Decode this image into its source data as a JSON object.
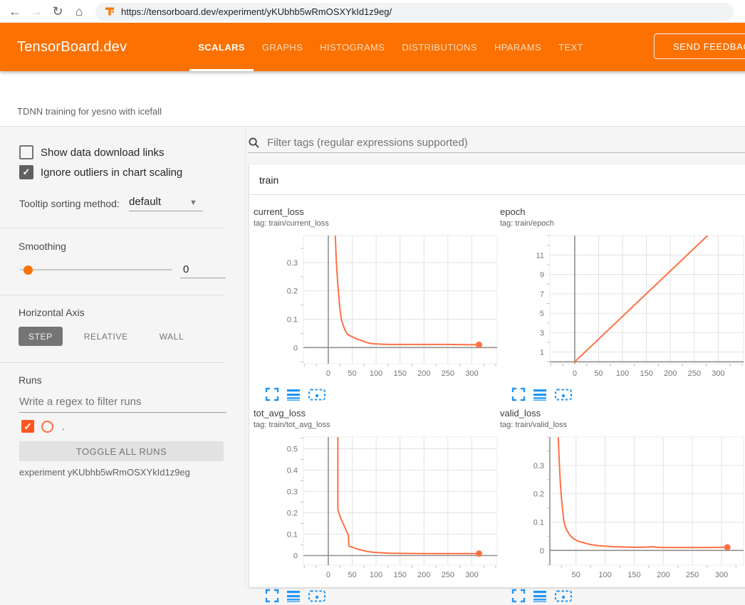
{
  "browser": {
    "url": "https://tensorboard.dev/experiment/yKUbhb5wRmOSXYkId1z9eg/",
    "back_glyph": "←",
    "forward_glyph": "→",
    "reload_glyph": "↻",
    "home_glyph": "⌂"
  },
  "header": {
    "logo": "TensorBoard.dev",
    "tabs": [
      {
        "label": "SCALARS",
        "active": true
      },
      {
        "label": "GRAPHS",
        "active": false
      },
      {
        "label": "HISTOGRAMS",
        "active": false
      },
      {
        "label": "DISTRIBUTIONS",
        "active": false
      },
      {
        "label": "HPARAMS",
        "active": false
      },
      {
        "label": "TEXT",
        "active": false
      }
    ],
    "feedback_label": "SEND FEEDBACK"
  },
  "subheader": {
    "experiment_title": "TDNN training for yesno with icefall"
  },
  "sidebar": {
    "checkboxes": [
      {
        "label": "Show data download links",
        "checked": false
      },
      {
        "label": "Ignore outliers in chart scaling",
        "checked": true
      }
    ],
    "check_glyph": "✓",
    "tooltip_sorting": {
      "label": "Tooltip sorting method:",
      "value": "default"
    },
    "smoothing": {
      "label": "Smoothing",
      "value": "0"
    },
    "horizontal_axis": {
      "label": "Horizontal Axis",
      "options": [
        "STEP",
        "RELATIVE",
        "WALL"
      ],
      "selected": "STEP"
    },
    "runs": {
      "label": "Runs",
      "filter_placeholder": "Write a regex to filter runs",
      "run_items": [
        {
          "name": ".",
          "checked": true,
          "color": "#ff5722"
        }
      ],
      "toggle_button_label": "TOGGLE ALL RUNS",
      "experiment_note": "experiment yKUbhb5wRmOSXYkId1z9eg"
    }
  },
  "main": {
    "filter_placeholder": "Filter tags (regular expressions supported)",
    "section_label": "train"
  },
  "colors": {
    "header_orange": "#fb7102",
    "run_orange": "#ff5722",
    "line_orange": "#ff7043",
    "icon_blue": "#2196f3"
  },
  "chart_data": [
    {
      "type": "line",
      "title": "current_loss",
      "tag": "tag: train/current_loss",
      "x_ticks": [
        0,
        50,
        100,
        150,
        200,
        250,
        300
      ],
      "y_ticks": [
        0,
        0.1,
        0.2,
        0.3
      ],
      "x_minor": 25,
      "y_minor": 0.05,
      "x_range": [
        -52,
        353
      ],
      "y_range": [
        -0.057,
        0.395
      ],
      "zero_x_line": true,
      "zero_y_line": true,
      "points": [
        [
          14,
          0.42
        ],
        [
          17,
          0.3
        ],
        [
          20,
          0.22
        ],
        [
          24,
          0.14
        ],
        [
          28,
          0.095
        ],
        [
          32,
          0.075
        ],
        [
          36,
          0.058
        ],
        [
          40,
          0.047
        ],
        [
          45,
          0.042
        ],
        [
          50,
          0.038
        ],
        [
          57,
          0.033
        ],
        [
          63,
          0.028
        ],
        [
          70,
          0.025
        ],
        [
          75,
          0.021
        ],
        [
          82,
          0.017
        ],
        [
          90,
          0.014
        ],
        [
          100,
          0.013
        ],
        [
          110,
          0.012
        ],
        [
          125,
          0.011
        ],
        [
          150,
          0.011
        ],
        [
          200,
          0.011
        ],
        [
          250,
          0.011
        ],
        [
          290,
          0.01
        ],
        [
          315,
          0.01
        ]
      ],
      "end_dot": [
        315,
        0.01
      ]
    },
    {
      "type": "line",
      "title": "epoch",
      "tag": "tag: train/epoch",
      "x_ticks": [
        0,
        50,
        100,
        150,
        200,
        250,
        300
      ],
      "y_ticks": [
        1,
        3,
        5,
        7,
        9,
        11
      ],
      "x_minor": 25,
      "y_minor": 1,
      "x_range": [
        -52,
        353
      ],
      "y_range": [
        -0.2,
        13.0
      ],
      "zero_x_line": true,
      "zero_y_line": true,
      "points": [
        [
          0,
          0
        ],
        [
          282,
          13.2
        ]
      ],
      "end_dot": null
    },
    {
      "type": "line",
      "title": "tot_avg_loss",
      "tag": "tag: train/tot_avg_loss",
      "x_ticks": [
        0,
        50,
        100,
        150,
        200,
        250,
        300
      ],
      "y_ticks": [
        0,
        0.1,
        0.2,
        0.3,
        0.4,
        0.5
      ],
      "x_minor": 25,
      "y_minor": 0.05,
      "x_range": [
        -52,
        353
      ],
      "y_range": [
        -0.045,
        0.555
      ],
      "zero_x_line": true,
      "zero_y_line": true,
      "points": [
        [
          20,
          0.57
        ],
        [
          20,
          0.215
        ],
        [
          22,
          0.2
        ],
        [
          26,
          0.175
        ],
        [
          30,
          0.155
        ],
        [
          34,
          0.135
        ],
        [
          38,
          0.115
        ],
        [
          41,
          0.1
        ],
        [
          42,
          0.097
        ],
        [
          43,
          0.044
        ],
        [
          48,
          0.041
        ],
        [
          54,
          0.036
        ],
        [
          60,
          0.031
        ],
        [
          67,
          0.027
        ],
        [
          75,
          0.022
        ],
        [
          85,
          0.018
        ],
        [
          95,
          0.015
        ],
        [
          110,
          0.013
        ],
        [
          130,
          0.011
        ],
        [
          160,
          0.01
        ],
        [
          200,
          0.009
        ],
        [
          250,
          0.009
        ],
        [
          300,
          0.009
        ],
        [
          315,
          0.009
        ]
      ],
      "end_dot": [
        315,
        0.009
      ]
    },
    {
      "type": "line",
      "title": "valid_loss",
      "tag": "tag: train/valid_loss",
      "x_ticks": [
        50,
        100,
        150,
        200,
        250,
        300
      ],
      "y_ticks": [
        0,
        0.1,
        0.2,
        0.3
      ],
      "x_minor": 25,
      "y_minor": 0.05,
      "x_range": [
        5,
        338
      ],
      "y_range": [
        -0.052,
        0.4
      ],
      "zero_x_line": false,
      "left_axis_line": true,
      "zero_y_line": true,
      "points": [
        [
          19,
          0.42
        ],
        [
          21,
          0.32
        ],
        [
          23,
          0.24
        ],
        [
          25,
          0.185
        ],
        [
          27,
          0.14
        ],
        [
          29,
          0.105
        ],
        [
          31,
          0.088
        ],
        [
          34,
          0.072
        ],
        [
          38,
          0.058
        ],
        [
          42,
          0.048
        ],
        [
          47,
          0.04
        ],
        [
          52,
          0.034
        ],
        [
          58,
          0.03
        ],
        [
          65,
          0.026
        ],
        [
          72,
          0.022
        ],
        [
          80,
          0.019
        ],
        [
          90,
          0.016
        ],
        [
          100,
          0.015
        ],
        [
          115,
          0.013
        ],
        [
          130,
          0.012
        ],
        [
          150,
          0.011
        ],
        [
          165,
          0.011
        ],
        [
          175,
          0.012
        ],
        [
          182,
          0.013
        ],
        [
          188,
          0.011
        ],
        [
          200,
          0.01
        ],
        [
          230,
          0.01
        ],
        [
          270,
          0.01
        ],
        [
          310,
          0.011
        ]
      ],
      "end_dot": [
        310,
        0.011
      ]
    }
  ]
}
